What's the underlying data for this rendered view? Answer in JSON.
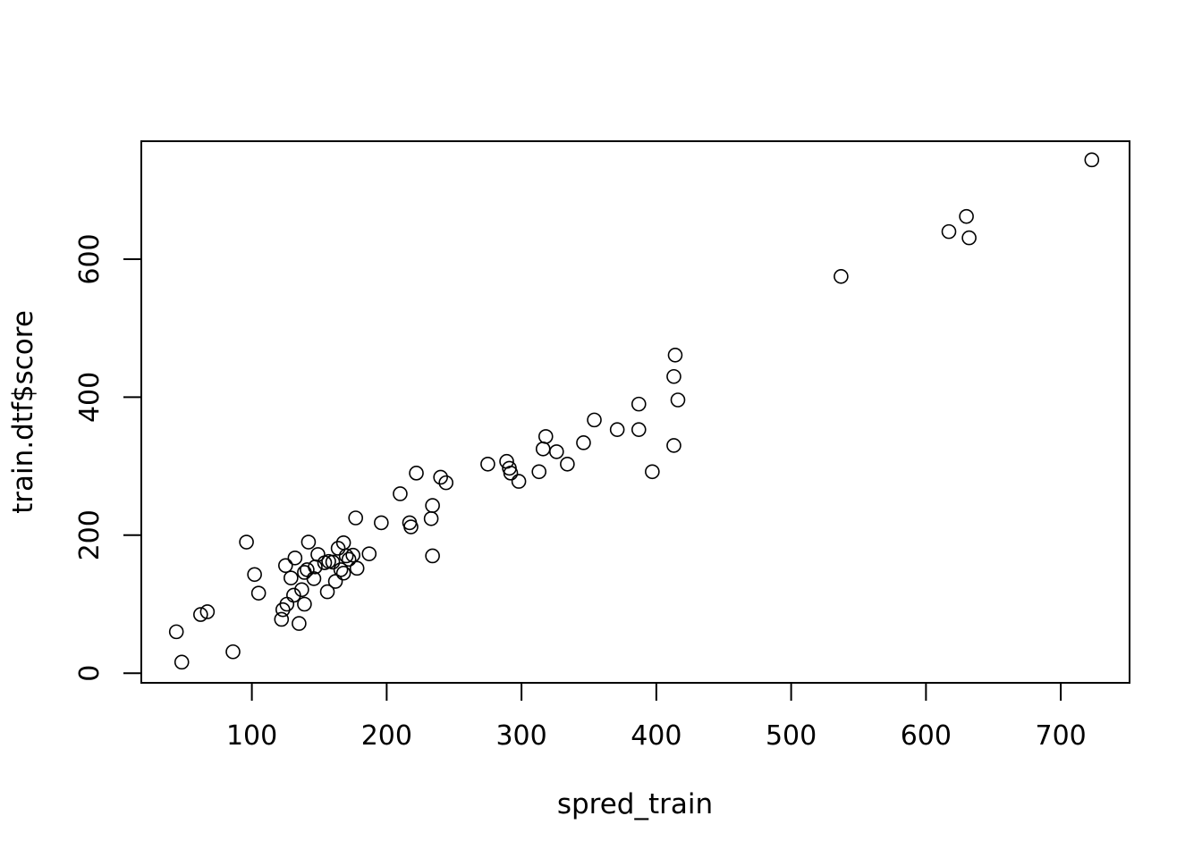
{
  "chart_data": {
    "type": "scatter",
    "title": "",
    "xlabel": "spred_train",
    "ylabel": "train.dtf$score",
    "xlim": [
      18,
      751
    ],
    "ylim": [
      -14,
      771
    ],
    "xticks": [
      100,
      200,
      300,
      400,
      500,
      600,
      700
    ],
    "yticks": [
      0,
      200,
      400,
      600
    ],
    "grid": false,
    "legend": "none",
    "marker": "open-circle",
    "color": "#000000",
    "points": [
      [
        44,
        60
      ],
      [
        48,
        16
      ],
      [
        62,
        85
      ],
      [
        67,
        89
      ],
      [
        86,
        31
      ],
      [
        96,
        190
      ],
      [
        102,
        143
      ],
      [
        105,
        116
      ],
      [
        122,
        78
      ],
      [
        123,
        92
      ],
      [
        125,
        156
      ],
      [
        126,
        100
      ],
      [
        129,
        138
      ],
      [
        131,
        113
      ],
      [
        132,
        167
      ],
      [
        135,
        72
      ],
      [
        137,
        121
      ],
      [
        139,
        100
      ],
      [
        139,
        146
      ],
      [
        141,
        150
      ],
      [
        142,
        190
      ],
      [
        146,
        137
      ],
      [
        147,
        154
      ],
      [
        149,
        172
      ],
      [
        154,
        160
      ],
      [
        156,
        118
      ],
      [
        157,
        162
      ],
      [
        160,
        161
      ],
      [
        162,
        133
      ],
      [
        164,
        181
      ],
      [
        166,
        150
      ],
      [
        168,
        189
      ],
      [
        168,
        145
      ],
      [
        170,
        170
      ],
      [
        172,
        165
      ],
      [
        175,
        171
      ],
      [
        177,
        225
      ],
      [
        178,
        152
      ],
      [
        187,
        173
      ],
      [
        196,
        218
      ],
      [
        210,
        260
      ],
      [
        217,
        218
      ],
      [
        218,
        212
      ],
      [
        222,
        290
      ],
      [
        233,
        224
      ],
      [
        234,
        243
      ],
      [
        234,
        170
      ],
      [
        240,
        284
      ],
      [
        244,
        276
      ],
      [
        275,
        303
      ],
      [
        289,
        307
      ],
      [
        291,
        297
      ],
      [
        292,
        290
      ],
      [
        298,
        278
      ],
      [
        313,
        292
      ],
      [
        316,
        325
      ],
      [
        318,
        343
      ],
      [
        326,
        321
      ],
      [
        334,
        303
      ],
      [
        346,
        334
      ],
      [
        354,
        367
      ],
      [
        371,
        353
      ],
      [
        387,
        390
      ],
      [
        387,
        353
      ],
      [
        397,
        292
      ],
      [
        413,
        430
      ],
      [
        413,
        330
      ],
      [
        414,
        461
      ],
      [
        416,
        396
      ],
      [
        537,
        575
      ],
      [
        617,
        640
      ],
      [
        630,
        662
      ],
      [
        632,
        631
      ],
      [
        723,
        744
      ]
    ]
  }
}
